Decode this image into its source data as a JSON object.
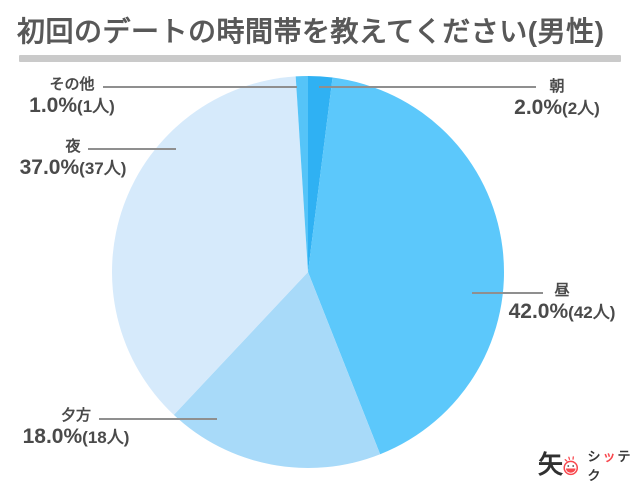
{
  "title": "初回のデートの時間帯を教えてください(男性)",
  "chart_data": {
    "type": "pie",
    "title": "初回のデートの時間帯を教えてください(男性)",
    "unit": "人",
    "total_responses": 100,
    "start_angle_deg": 0,
    "direction": "clockwise",
    "legend": "none (direct callout labels with leader lines)",
    "slices": [
      {
        "label": "朝",
        "value": 2.0,
        "count": 2,
        "pct_label": "2.0%",
        "count_label": "(2人)",
        "color": "#2fb1f3"
      },
      {
        "label": "昼",
        "value": 42.0,
        "count": 42,
        "pct_label": "42.0%",
        "count_label": "(42人)",
        "color": "#5cc8fb"
      },
      {
        "label": "夕方",
        "value": 18.0,
        "count": 18,
        "pct_label": "18.0%",
        "count_label": "(18人)",
        "color": "#a8daf9"
      },
      {
        "label": "夜",
        "value": 37.0,
        "count": 37,
        "pct_label": "37.0%",
        "count_label": "(37人)",
        "color": "#d6eafb"
      },
      {
        "label": "その他",
        "value": 1.0,
        "count": 1,
        "pct_label": "1.0%",
        "count_label": "(1人)",
        "color": "#55c4f8"
      }
    ]
  },
  "logo": {
    "kanji": "矢",
    "text_shi": "シ",
    "text_tsu": "ッ",
    "text_teku": "テク",
    "accent_color": "#f8484e"
  },
  "colors": {
    "background": "#ffffff",
    "title_text": "#585858",
    "label_text": "#4a4a4a",
    "leader_line": "#8f8f8f",
    "separator": "#cacaca",
    "accent_red": "#f8484e"
  }
}
